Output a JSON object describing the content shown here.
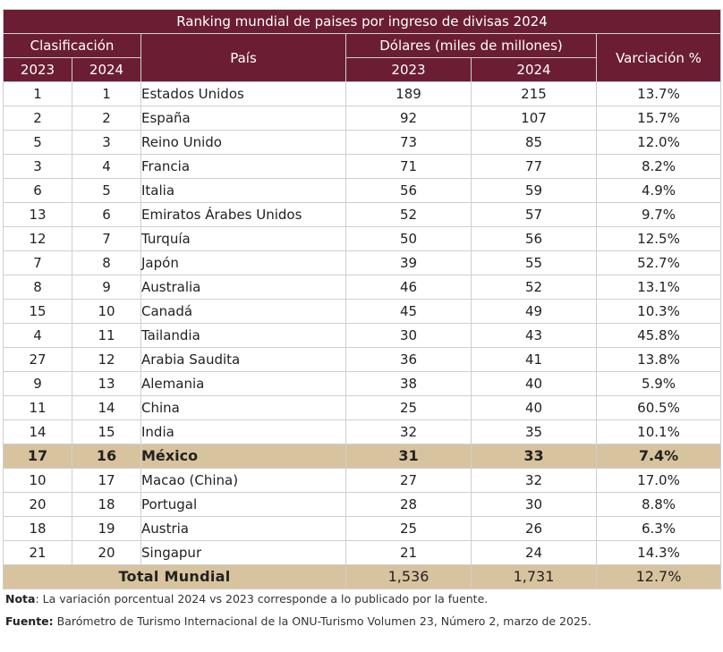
{
  "table": {
    "title": "Ranking mundial de paises por ingreso de divisas 2024",
    "headers": {
      "clasificacion": "Clasificación",
      "pais": "País",
      "dolares": "Dólares (miles de millones)",
      "variacion": "Varciación %",
      "year_2023": "2023",
      "year_2024": "2024"
    },
    "rows": [
      {
        "r2023": "1",
        "r2024": "1",
        "pais": "Estados Unidos",
        "d2023": "189",
        "d2024": "215",
        "var": "13.7%"
      },
      {
        "r2023": "2",
        "r2024": "2",
        "pais": "España",
        "d2023": "92",
        "d2024": "107",
        "var": "15.7%"
      },
      {
        "r2023": "5",
        "r2024": "3",
        "pais": "Reino Unido",
        "d2023": "73",
        "d2024": "85",
        "var": "12.0%"
      },
      {
        "r2023": "3",
        "r2024": "4",
        "pais": "Francia",
        "d2023": "71",
        "d2024": "77",
        "var": "8.2%"
      },
      {
        "r2023": "6",
        "r2024": "5",
        "pais": "Italia",
        "d2023": "56",
        "d2024": "59",
        "var": "4.9%"
      },
      {
        "r2023": "13",
        "r2024": "6",
        "pais": "Emiratos Árabes Unidos",
        "d2023": "52",
        "d2024": "57",
        "var": "9.7%"
      },
      {
        "r2023": "12",
        "r2024": "7",
        "pais": "Turquía",
        "d2023": "50",
        "d2024": "56",
        "var": "12.5%"
      },
      {
        "r2023": "7",
        "r2024": "8",
        "pais": "Japón",
        "d2023": "39",
        "d2024": "55",
        "var": "52.7%"
      },
      {
        "r2023": "8",
        "r2024": "9",
        "pais": "Australia",
        "d2023": "46",
        "d2024": "52",
        "var": "13.1%"
      },
      {
        "r2023": "15",
        "r2024": "10",
        "pais": "Canadá",
        "d2023": "45",
        "d2024": "49",
        "var": "10.3%"
      },
      {
        "r2023": "4",
        "r2024": "11",
        "pais": "Tailandia",
        "d2023": "30",
        "d2024": "43",
        "var": "45.8%"
      },
      {
        "r2023": "27",
        "r2024": "12",
        "pais": "Arabia Saudita",
        "d2023": "36",
        "d2024": "41",
        "var": "13.8%"
      },
      {
        "r2023": "9",
        "r2024": "13",
        "pais": "Alemania",
        "d2023": "38",
        "d2024": "40",
        "var": "5.9%"
      },
      {
        "r2023": "11",
        "r2024": "14",
        "pais": "China",
        "d2023": "25",
        "d2024": "40",
        "var": "60.5%"
      },
      {
        "r2023": "14",
        "r2024": "15",
        "pais": "India",
        "d2023": "32",
        "d2024": "35",
        "var": "10.1%"
      },
      {
        "r2023": "17",
        "r2024": "16",
        "pais": "México",
        "d2023": "31",
        "d2024": "33",
        "var": "7.4%"
      },
      {
        "r2023": "10",
        "r2024": "17",
        "pais": "Macao (China)",
        "d2023": "27",
        "d2024": "32",
        "var": "17.0%"
      },
      {
        "r2023": "20",
        "r2024": "18",
        "pais": "Portugal",
        "d2023": "28",
        "d2024": "30",
        "var": "8.8%"
      },
      {
        "r2023": "18",
        "r2024": "19",
        "pais": "Austria",
        "d2023": "25",
        "d2024": "26",
        "var": "6.3%"
      },
      {
        "r2023": "21",
        "r2024": "20",
        "pais": "Singapur",
        "d2023": "21",
        "d2024": "24",
        "var": "14.3%"
      }
    ],
    "total": {
      "label": "Total Mundial",
      "d2023": "1,536",
      "d2024": "1,731",
      "var": "12.7%"
    },
    "colors": {
      "header_bg": "#6b1e33",
      "highlight_bg": "#d8c39f"
    }
  },
  "notes": {
    "nota_label": "Nota",
    "nota_text": ": La variación porcentual 2024 vs 2023 corresponde a lo publicado por la fuente.",
    "fuente_label": "Fuente:",
    "fuente_text": " Barómetro de Turismo Internacional de la ONU-Turismo Volumen 23, Número 2, marzo de 2025."
  }
}
